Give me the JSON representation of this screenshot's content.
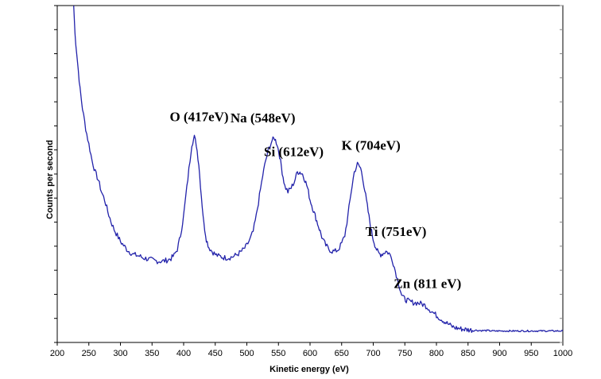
{
  "chart_data": {
    "type": "line",
    "title": "",
    "xlabel": "Kinetic energy (eV)",
    "ylabel": "Counts per second",
    "xlim": [
      200,
      1000
    ],
    "x_ticks": [
      "200",
      "250",
      "300",
      "350",
      "400",
      "450",
      "500",
      "550",
      "600",
      "650",
      "700",
      "750",
      "800",
      "850",
      "900",
      "950",
      "1000"
    ],
    "y_ticks_labeled": false,
    "grid": false,
    "legend": false,
    "line_color": "#2222aa",
    "series": [
      {
        "values_description_note": "",
        "x": [
          226,
          228,
          232,
          236,
          240,
          245,
          250,
          255,
          260,
          265,
          270,
          275,
          280,
          285,
          290,
          295,
          300,
          305,
          310,
          315,
          320,
          325,
          330,
          335,
          340,
          345,
          350,
          355,
          360,
          365,
          370,
          375,
          380,
          385,
          390,
          395,
          400,
          405,
          410,
          413,
          417,
          420,
          424,
          428,
          432,
          436,
          440,
          445,
          450,
          455,
          460,
          465,
          470,
          475,
          480,
          485,
          490,
          495,
          500,
          505,
          510,
          515,
          520,
          525,
          530,
          535,
          540,
          544,
          548,
          552,
          556,
          560,
          565,
          570,
          575,
          580,
          584,
          588,
          592,
          596,
          600,
          604,
          608,
          612,
          616,
          620,
          625,
          630,
          635,
          640,
          645,
          650,
          655,
          660,
          665,
          670,
          675,
          680,
          684,
          688,
          692,
          696,
          700,
          704,
          708,
          712,
          716,
          720,
          725,
          730,
          735,
          740,
          745,
          748,
          751,
          755,
          760,
          765,
          770,
          775,
          780,
          785,
          790,
          795,
          800,
          805,
          811,
          815,
          820,
          825,
          830,
          840,
          850,
          860,
          870,
          880,
          890,
          900,
          910,
          920,
          930,
          940,
          950,
          960,
          970,
          980,
          990,
          1000
        ],
        "y": [
          1000,
          930,
          860,
          790,
          740,
          690,
          650,
          610,
          580,
          560,
          530,
          510,
          480,
          455,
          435,
          420,
          405,
          395,
          385,
          378,
          372,
          370,
          368,
          364,
          362,
          360,
          358,
          356,
          355,
          355,
          356,
          358,
          362,
          370,
          385,
          420,
          470,
          540,
          610,
          650,
          668,
          650,
          600,
          520,
          450,
          410,
          390,
          380,
          372,
          368,
          366,
          364,
          364,
          365,
          368,
          372,
          378,
          385,
          395,
          410,
          430,
          470,
          520,
          570,
          610,
          640,
          660,
          665,
          650,
          620,
          580,
          545,
          530,
          540,
          555,
          580,
          580,
          575,
          560,
          540,
          510,
          490,
          470,
          450,
          430,
          410,
          395,
          385,
          380,
          380,
          385,
          400,
          420,
          470,
          530,
          580,
          600,
          590,
          560,
          520,
          480,
          440,
          410,
          390,
          375,
          372,
          375,
          380,
          375,
          360,
          330,
          300,
          270,
          262,
          258,
          255,
          252,
          250,
          250,
          248,
          245,
          240,
          232,
          225,
          218,
          212,
          205,
          200,
          195,
          190,
          187,
          184,
          182,
          181,
          180,
          180,
          179,
          179,
          179,
          179,
          179,
          179,
          179,
          179,
          179,
          179,
          179,
          179
        ]
      }
    ],
    "y_data_units_note": "",
    "ylim": [
      150,
      1000
    ],
    "annotations": [
      {
        "text": "O (417eV)",
        "x": 417,
        "y": 668
      },
      {
        "text": "Na (548eV)",
        "x": 548,
        "y": 665
      },
      {
        "text": "Si (612eV)",
        "x": 612,
        "y": 580
      },
      {
        "text": "K (704eV)",
        "x": 704,
        "y": 600
      },
      {
        "text": "Ti (751eV)",
        "x": 751,
        "y": 375
      },
      {
        "text": "Zn (811 eV)",
        "x": 811,
        "y": 255
      }
    ]
  }
}
